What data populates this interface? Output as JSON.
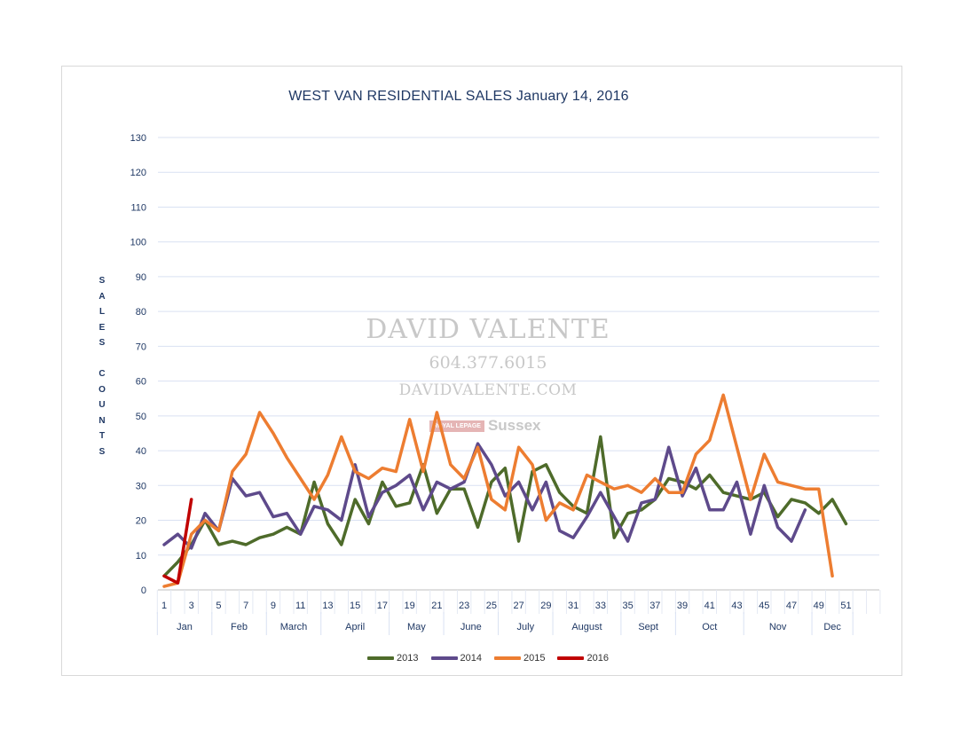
{
  "chart_data": {
    "type": "line",
    "title": "WEST VAN RESIDENTIAL SALES January 14, 2016",
    "ylabel_letters": [
      "S",
      "A",
      "L",
      "E",
      "S",
      "",
      "C",
      "O",
      "U",
      "N",
      "T",
      "S"
    ],
    "xlabel": "",
    "ylim": [
      0,
      130
    ],
    "yticks": [
      "0",
      "10",
      "20",
      "30",
      "40",
      "50",
      "60",
      "70",
      "80",
      "90",
      "100",
      "110",
      "120",
      "130"
    ],
    "x_min": 1,
    "x_max": 52,
    "xticks": [
      "1",
      "3",
      "5",
      "7",
      "9",
      "11",
      "13",
      "15",
      "17",
      "19",
      "21",
      "23",
      "25",
      "27",
      "29",
      "31",
      "33",
      "35",
      "37",
      "39",
      "41",
      "43",
      "45",
      "47",
      "49",
      "51"
    ],
    "months": [
      {
        "label": "Jan",
        "start": 1,
        "end": 4
      },
      {
        "label": "Feb",
        "start": 5,
        "end": 8
      },
      {
        "label": "March",
        "start": 9,
        "end": 12
      },
      {
        "label": "April",
        "start": 13,
        "end": 17
      },
      {
        "label": "May",
        "start": 18,
        "end": 21
      },
      {
        "label": "June",
        "start": 22,
        "end": 25
      },
      {
        "label": "July",
        "start": 26,
        "end": 29
      },
      {
        "label": "August",
        "start": 30,
        "end": 34
      },
      {
        "label": "Sept",
        "start": 35,
        "end": 38
      },
      {
        "label": "Oct",
        "start": 39,
        "end": 43
      },
      {
        "label": "Nov",
        "start": 44,
        "end": 48
      },
      {
        "label": "Dec",
        "start": 49,
        "end": 51
      }
    ],
    "grid": true,
    "legend_position": "bottom",
    "series": [
      {
        "name": "2013",
        "color": "#4e6b2a",
        "values": [
          4,
          8,
          13,
          20,
          13,
          14,
          13,
          15,
          16,
          18,
          16,
          31,
          19,
          13,
          26,
          19,
          31,
          24,
          25,
          36,
          22,
          29,
          29,
          18,
          31,
          35,
          14,
          34,
          36,
          28,
          24,
          22,
          44,
          15,
          22,
          23,
          26,
          32,
          31,
          29,
          33,
          28,
          27,
          26,
          28,
          21,
          26,
          25,
          22,
          26,
          19
        ]
      },
      {
        "name": "2014",
        "color": "#5e4a8b",
        "values": [
          13,
          16,
          12,
          22,
          17,
          32,
          27,
          28,
          21,
          22,
          16,
          24,
          23,
          20,
          36,
          21,
          28,
          30,
          33,
          23,
          31,
          29,
          31,
          42,
          36,
          27,
          31,
          23,
          31,
          17,
          15,
          21,
          28,
          21,
          14,
          25,
          26,
          41,
          27,
          35,
          23,
          23,
          31,
          16,
          30,
          18,
          14,
          23
        ]
      },
      {
        "name": "2015",
        "color": "#ed7d31",
        "values": [
          1,
          2,
          16,
          20,
          17,
          34,
          39,
          51,
          45,
          38,
          32,
          26,
          33,
          44,
          34,
          32,
          35,
          34,
          49,
          34,
          51,
          36,
          32,
          41,
          26,
          23,
          41,
          36,
          20,
          25,
          23,
          33,
          31,
          29,
          30,
          28,
          32,
          28,
          28,
          39,
          43,
          56,
          41,
          26,
          39,
          31,
          30,
          29,
          29,
          4
        ]
      },
      {
        "name": "2016",
        "color": "#c00000",
        "values": [
          4,
          2,
          26
        ]
      }
    ]
  },
  "watermark": {
    "name": "DAVID VALENTE",
    "phone": "604.377.6015",
    "site": "DAVIDVALENTE.COM",
    "logo": "ROYAL LEPAGE",
    "brand": "Sussex"
  }
}
